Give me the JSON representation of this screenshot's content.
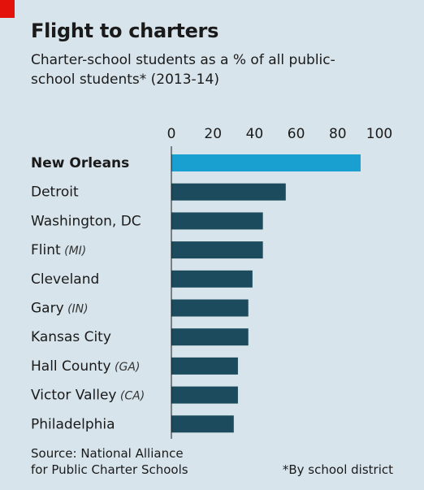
{
  "title": "Flight to charters",
  "subtitle": "Charter-school students as a % of all public-school students* (2013-14)",
  "source": "Source: National Alliance\nfor Public Charter Schools",
  "footnote": "*By school district",
  "colors": {
    "highlight": "#1aa0d0",
    "bar": "#1b4b5c",
    "background": "#d8e4eb",
    "accent": "#e3120b"
  },
  "chart_data": {
    "type": "bar",
    "orientation": "horizontal",
    "title": "Flight to charters",
    "xlabel": "",
    "ylabel": "",
    "xlim": [
      0,
      100
    ],
    "ticks": [
      0,
      20,
      40,
      60,
      80,
      100
    ],
    "grid": false,
    "categories": [
      {
        "name": "New Orleans",
        "qualifier": "",
        "highlight": true
      },
      {
        "name": "Detroit",
        "qualifier": "",
        "highlight": false
      },
      {
        "name": "Washington, DC",
        "qualifier": "",
        "highlight": false
      },
      {
        "name": "Flint",
        "qualifier": "(MI)",
        "highlight": false
      },
      {
        "name": "Cleveland",
        "qualifier": "",
        "highlight": false
      },
      {
        "name": "Gary",
        "qualifier": "(IN)",
        "highlight": false
      },
      {
        "name": "Kansas City",
        "qualifier": "",
        "highlight": false
      },
      {
        "name": "Hall County",
        "qualifier": "(GA)",
        "highlight": false
      },
      {
        "name": "Victor Valley",
        "qualifier": "(CA)",
        "highlight": false
      },
      {
        "name": "Philadelphia",
        "qualifier": "",
        "highlight": false
      }
    ],
    "values": [
      91,
      55,
      44,
      44,
      39,
      37,
      37,
      32,
      32,
      30
    ]
  }
}
